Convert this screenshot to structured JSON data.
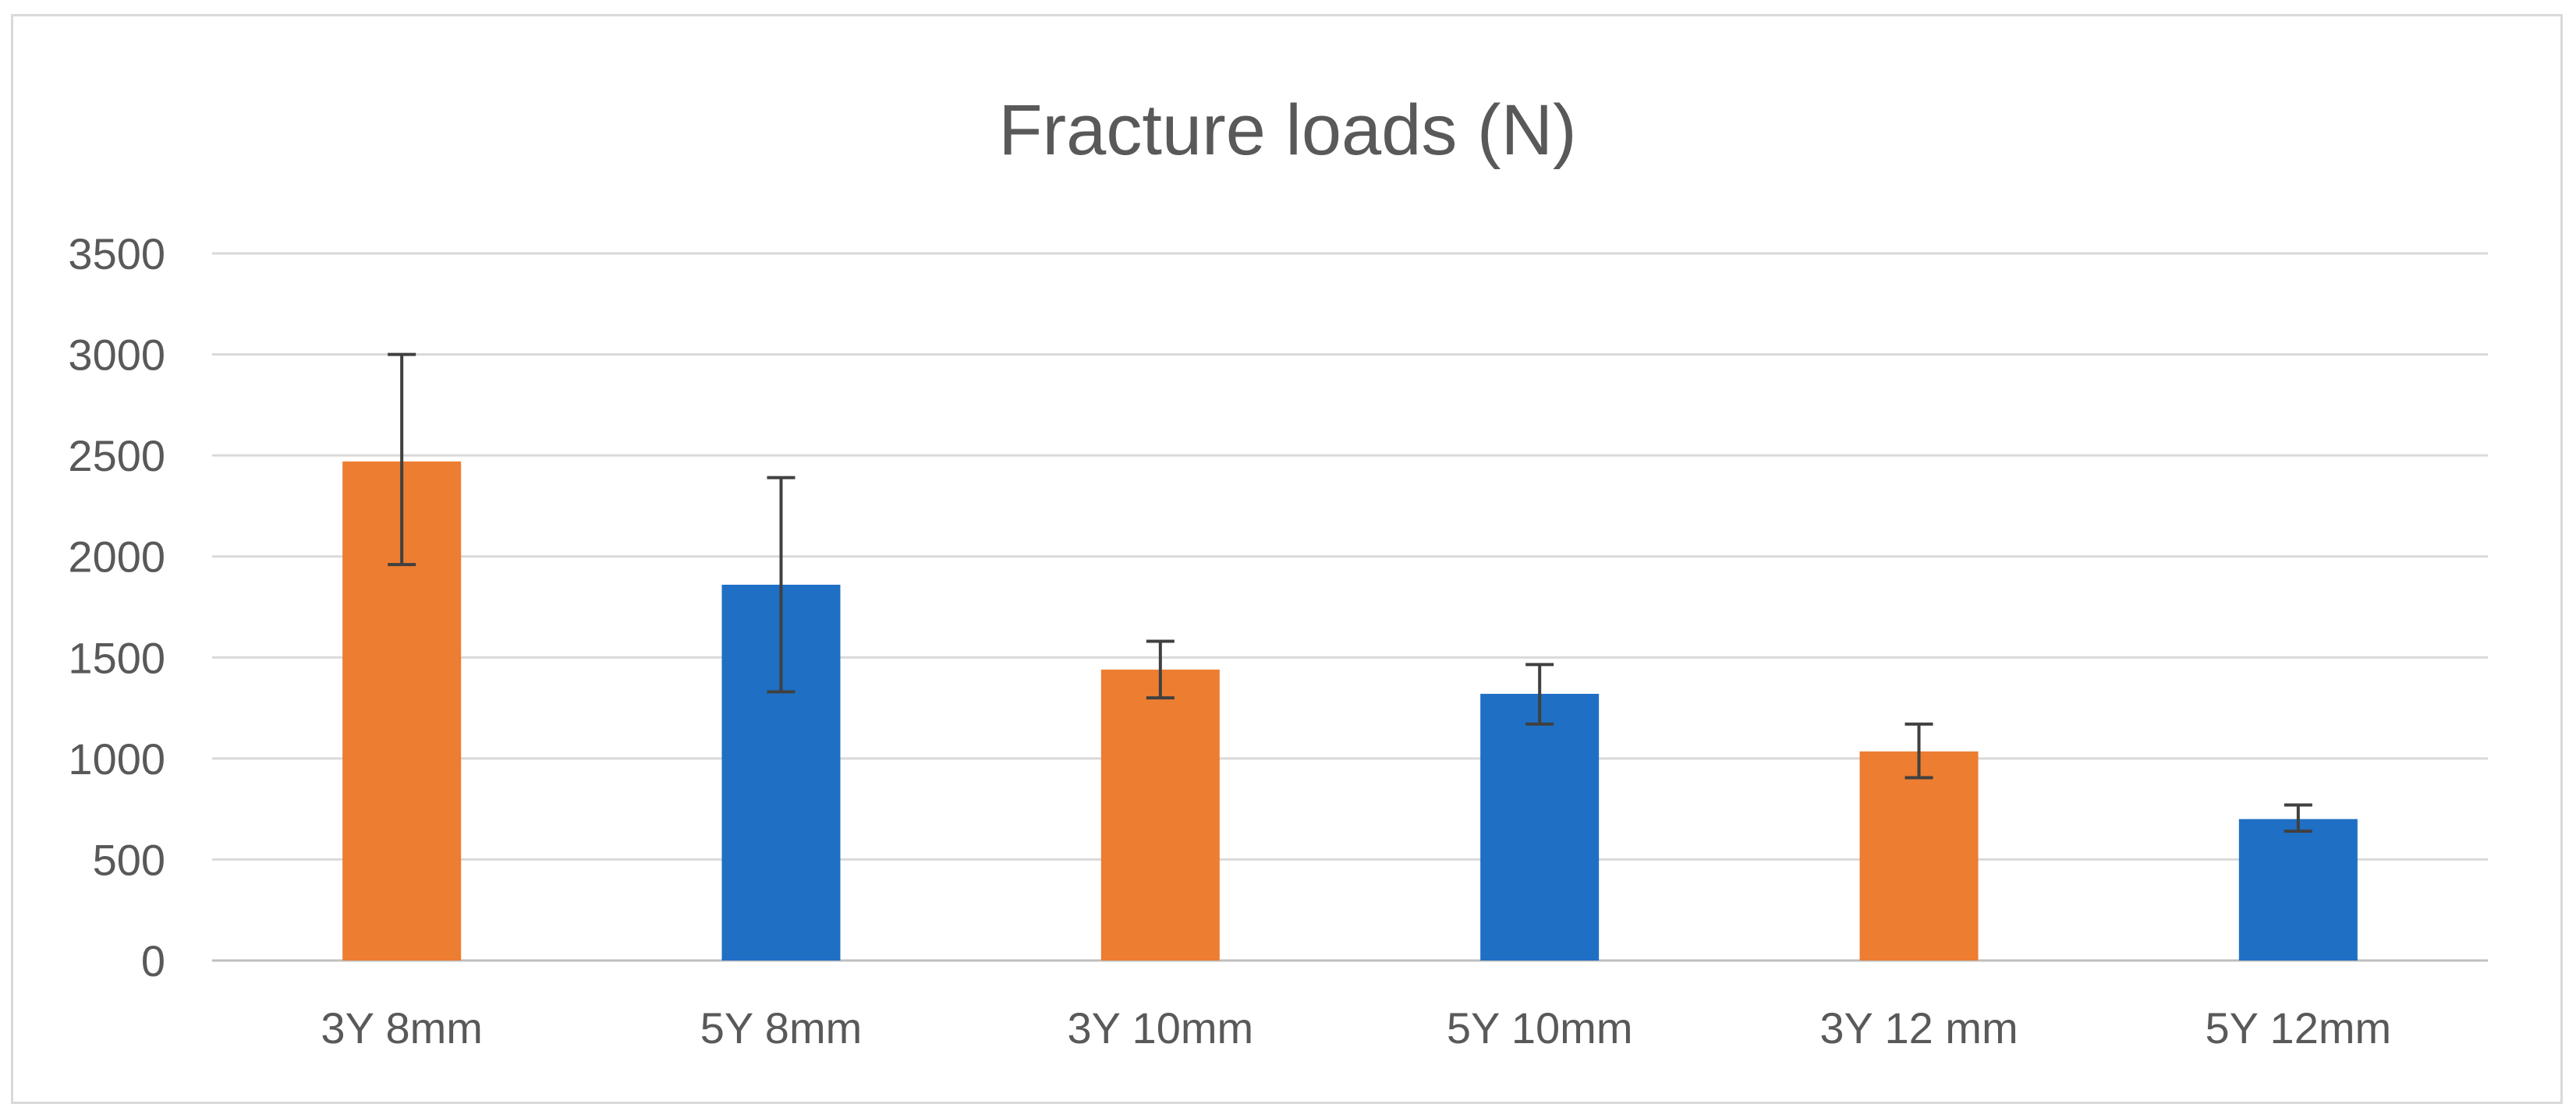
{
  "chart_data": {
    "type": "bar",
    "title": "Fracture loads (N)",
    "xlabel": "",
    "ylabel": "",
    "categories": [
      "3Y 8mm",
      "5Y 8mm",
      "3Y 10mm",
      "5Y 10mm",
      "3Y 12 mm",
      "5Y 12mm"
    ],
    "values": [
      2470,
      1860,
      1440,
      1320,
      1035,
      700
    ],
    "error_low": [
      1960,
      1330,
      1300,
      1170,
      905,
      640
    ],
    "error_high": [
      3000,
      2390,
      1580,
      1465,
      1170,
      770
    ],
    "bar_colors": [
      "#ED7D31",
      "#1F6FC5",
      "#ED7D31",
      "#1F6FC5",
      "#ED7D31",
      "#1F6FC5"
    ],
    "ylim": [
      0,
      3500
    ],
    "y_ticks": [
      0,
      500,
      1000,
      1500,
      2000,
      2500,
      3000,
      3500
    ],
    "y_tick_labels": [
      "0",
      "500",
      "1000",
      "1500",
      "2000",
      "2500",
      "3000",
      "3500"
    ],
    "grid": true,
    "legend": "none"
  }
}
